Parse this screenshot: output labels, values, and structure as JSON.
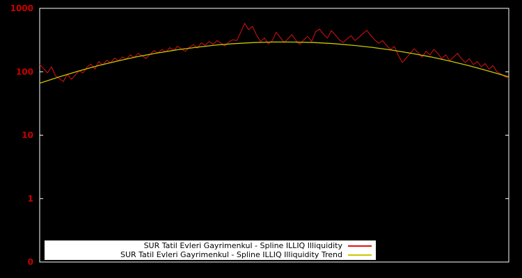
{
  "chart_data": {
    "type": "line",
    "title": "",
    "xlabel": "",
    "ylabel": "",
    "y_scale": "log",
    "ylim": [
      0.1,
      1000
    ],
    "y_tick_values": [
      1000,
      100,
      10,
      1,
      0.1
    ],
    "y_tick_labels": [
      "1000",
      "100",
      "10",
      "1",
      "0"
    ],
    "grid": false,
    "legend_position": "bottom-center-inside",
    "background_color": "#000000",
    "plot_border_color": "#ffffff",
    "axis_label_color": "#cc0000",
    "legend": {
      "background_color": "#ffffff",
      "text_color": "#000000"
    },
    "series": [
      {
        "name": "SUR Tatil Evleri Gayrimenkul - Spline ILLIQ Illiquidity",
        "color": "#dd1111",
        "values": [
          130,
          112,
          96,
          120,
          86,
          78,
          70,
          92,
          76,
          88,
          104,
          96,
          118,
          132,
          110,
          145,
          128,
          152,
          138,
          165,
          148,
          172,
          158,
          185,
          168,
          195,
          178,
          162,
          188,
          215,
          198,
          225,
          205,
          240,
          218,
          252,
          228,
          210,
          245,
          268,
          235,
          285,
          260,
          300,
          272,
          310,
          282,
          255,
          296,
          320,
          310,
          420,
          580,
          460,
          520,
          380,
          300,
          340,
          275,
          310,
          420,
          350,
          290,
          330,
          385,
          310,
          270,
          320,
          360,
          300,
          430,
          470,
          390,
          340,
          445,
          380,
          320,
          290,
          330,
          370,
          310,
          350,
          400,
          450,
          370,
          320,
          280,
          310,
          260,
          225,
          250,
          180,
          140,
          165,
          195,
          230,
          200,
          170,
          210,
          185,
          225,
          195,
          160,
          185,
          150,
          170,
          195,
          160,
          140,
          160,
          130,
          145,
          120,
          135,
          110,
          125,
          100,
          92,
          84,
          78
        ]
      },
      {
        "name": "SUR Tatil Evleri Gayrimenkul - Spline ILLIQ Illiquidity Trend",
        "color": "#c8c800",
        "values": [
          66,
          83,
          103,
          125,
          148,
          173,
          197,
          221,
          243,
          263,
          278,
          289,
          295,
          294,
          289,
          278,
          262,
          243,
          220,
          196,
          172,
          147,
          124,
          102,
          83
        ]
      }
    ]
  }
}
